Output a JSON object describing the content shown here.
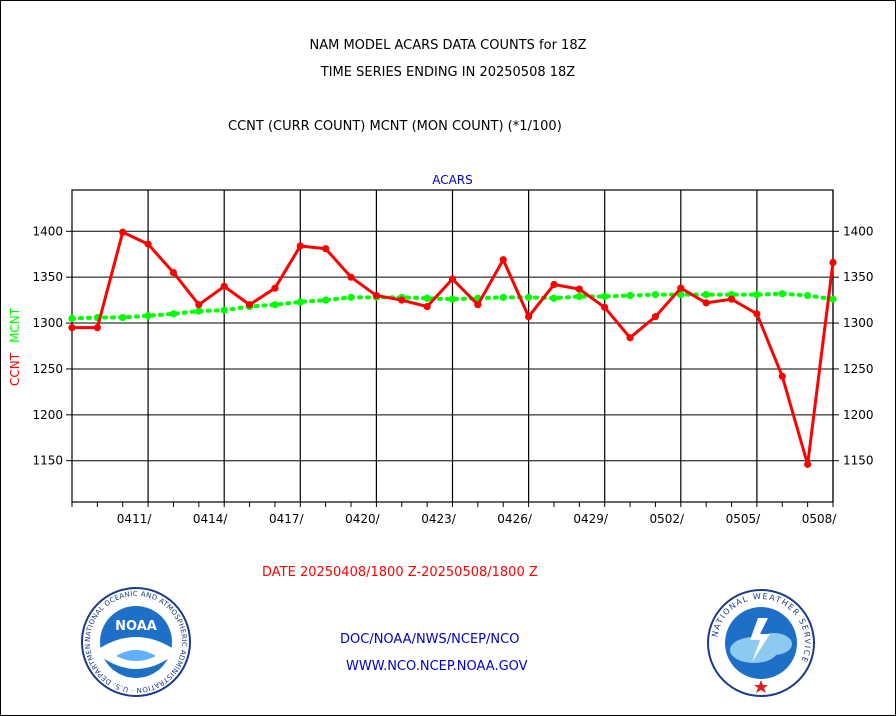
{
  "header": {
    "title_line1": "NAM MODEL ACARS DATA COUNTS for 18Z",
    "title_line2": "TIME SERIES ENDING IN 20250508 18Z",
    "subtitle": "CCNT (CURR COUNT) MCNT (MON COUNT) (*1/100)"
  },
  "footer": {
    "date_range": "DATE 20250408/1800 Z-20250508/1800 Z",
    "link1": "DOC/NOAA/NWS/NCEP/NCO",
    "link2": "WWW.NCO.NCEP.NOAA.GOV"
  },
  "logos": {
    "left": "NOAA",
    "left_ring": "NATIONAL OCEANIC AND ATMOSPHERIC ADMINISTRATION · U.S. DEPARTMENT OF COMMERCE ·",
    "right_ring": "NATIONAL WEATHER SERVICE"
  },
  "chart_data": {
    "type": "line",
    "title": "ACARS",
    "ylabel_ccnt": "CCNT",
    "ylabel_mcnt": "MCNT",
    "ylim": [
      1105,
      1445
    ],
    "yticks": [
      1150,
      1200,
      1250,
      1300,
      1350,
      1400
    ],
    "xlim": [
      0,
      30
    ],
    "xticks": [
      {
        "x": 3,
        "label": "0411/"
      },
      {
        "x": 6,
        "label": "0414/"
      },
      {
        "x": 9,
        "label": "0417/"
      },
      {
        "x": 12,
        "label": "0420/"
      },
      {
        "x": 15,
        "label": "0423/"
      },
      {
        "x": 18,
        "label": "0426/"
      },
      {
        "x": 21,
        "label": "0429/"
      },
      {
        "x": 24,
        "label": "0502/"
      },
      {
        "x": 27,
        "label": "0505/"
      },
      {
        "x": 30,
        "label": "0508/"
      }
    ],
    "grid": true,
    "colors": {
      "ccnt": "#ff0000",
      "mcnt": "#00ff00",
      "title": "#0000cc",
      "date": "#ff0000",
      "links": "#0000cc"
    },
    "series": [
      {
        "name": "CCNT",
        "x": [
          0,
          1,
          2,
          3,
          4,
          5,
          6,
          7,
          8,
          9,
          10,
          11,
          12,
          13,
          14,
          15,
          16,
          17,
          18,
          19,
          20,
          21,
          22,
          23,
          24,
          25,
          26,
          27,
          28,
          29,
          30
        ],
        "values": [
          1295,
          1295,
          1399,
          1386,
          1355,
          1320,
          1340,
          1320,
          1338,
          1384,
          1381,
          1350,
          1330,
          1325,
          1318,
          1348,
          1320,
          1369,
          1307,
          1342,
          1337,
          1317,
          1284,
          1307,
          1338,
          1322,
          1326,
          1310,
          1242,
          1146,
          1366
        ]
      },
      {
        "name": "MCNT",
        "x": [
          0,
          1,
          2,
          3,
          4,
          5,
          6,
          7,
          8,
          9,
          10,
          11,
          12,
          13,
          14,
          15,
          16,
          17,
          18,
          19,
          20,
          21,
          22,
          23,
          24,
          25,
          26,
          27,
          28,
          29,
          30
        ],
        "values": [
          1305,
          1306,
          1306,
          1308,
          1310,
          1313,
          1314,
          1318,
          1320,
          1323,
          1325,
          1328,
          1328,
          1328,
          1327,
          1326,
          1327,
          1328,
          1328,
          1327,
          1329,
          1329,
          1330,
          1331,
          1331,
          1331,
          1331,
          1331,
          1332,
          1330,
          1326
        ]
      }
    ]
  }
}
